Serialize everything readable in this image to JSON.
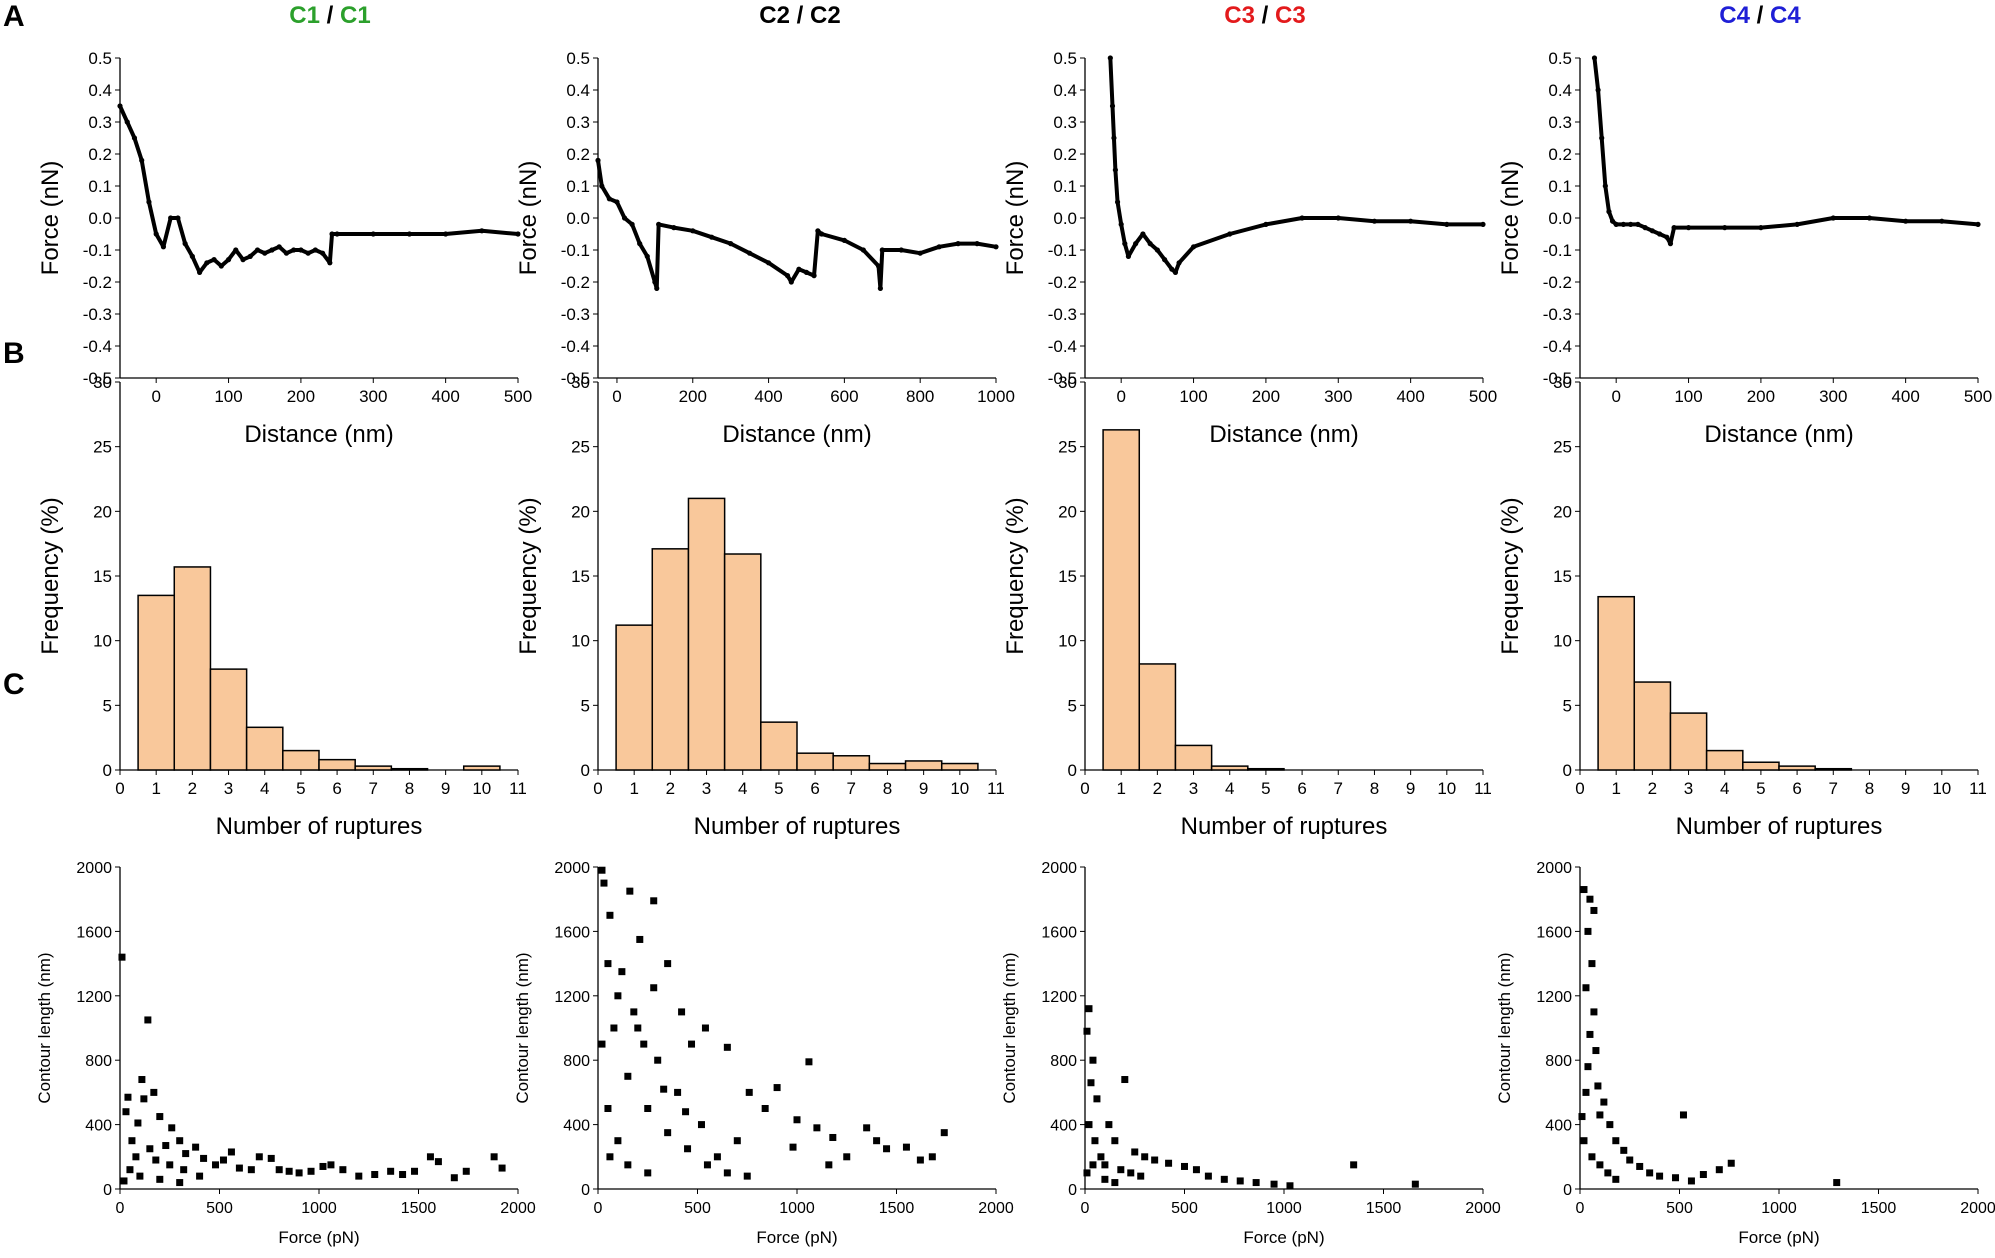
{
  "panel_labels": {
    "a": "A",
    "b": "B",
    "c": "C"
  },
  "column_titles": [
    {
      "left": "C1",
      "sep": "/",
      "right": "C1",
      "color": "#2ca02c"
    },
    {
      "left": "C2",
      "sep": "/",
      "right": "C2",
      "color": "#000000"
    },
    {
      "left": "C3",
      "sep": "/",
      "right": "C3",
      "color": "#e31a1c"
    },
    {
      "left": "C4",
      "sep": "/",
      "right": "C4",
      "color": "#1f1fd6"
    }
  ],
  "colors": {
    "bar_fill": "#f9c89b",
    "bar_stroke": "#000000",
    "marker": "#000000"
  },
  "chart_data": [
    {
      "id": "A1",
      "type": "line",
      "xlabel": "Distance (nm)",
      "ylabel": "Force (nN)",
      "xlim": [
        -50,
        500
      ],
      "ylim": [
        -0.5,
        0.5
      ],
      "xticks": [
        0,
        100,
        200,
        300,
        400,
        500
      ],
      "yticks": [
        -0.5,
        -0.4,
        -0.3,
        -0.2,
        -0.1,
        0.0,
        0.1,
        0.2,
        0.3,
        0.4,
        0.5
      ],
      "x": [
        -50,
        -40,
        -30,
        -20,
        -10,
        0,
        10,
        20,
        30,
        40,
        50,
        60,
        70,
        80,
        90,
        100,
        110,
        120,
        130,
        140,
        150,
        160,
        170,
        180,
        190,
        200,
        210,
        220,
        230,
        240,
        243,
        250,
        300,
        350,
        400,
        450,
        500
      ],
      "y": [
        0.35,
        0.3,
        0.25,
        0.18,
        0.05,
        -0.05,
        -0.09,
        0.0,
        0.0,
        -0.08,
        -0.12,
        -0.17,
        -0.14,
        -0.13,
        -0.15,
        -0.13,
        -0.1,
        -0.13,
        -0.12,
        -0.1,
        -0.11,
        -0.1,
        -0.09,
        -0.11,
        -0.1,
        -0.1,
        -0.11,
        -0.1,
        -0.11,
        -0.14,
        -0.05,
        -0.05,
        -0.05,
        -0.05,
        -0.05,
        -0.04,
        -0.05
      ]
    },
    {
      "id": "A2",
      "type": "line",
      "xlabel": "Distance (nm)",
      "ylabel": "Force (nN)",
      "xlim": [
        -50,
        1000
      ],
      "ylim": [
        -0.5,
        0.5
      ],
      "xticks": [
        0,
        200,
        400,
        600,
        800,
        1000
      ],
      "yticks": [
        -0.5,
        -0.4,
        -0.3,
        -0.2,
        -0.1,
        0.0,
        0.1,
        0.2,
        0.3,
        0.4,
        0.5
      ],
      "x": [
        -50,
        -40,
        -20,
        0,
        20,
        40,
        60,
        80,
        100,
        105,
        110,
        150,
        200,
        250,
        300,
        350,
        400,
        450,
        460,
        480,
        500,
        520,
        530,
        540,
        600,
        650,
        690,
        695,
        700,
        750,
        800,
        850,
        900,
        950,
        1000
      ],
      "y": [
        0.18,
        0.1,
        0.06,
        0.05,
        0.0,
        -0.02,
        -0.08,
        -0.12,
        -0.2,
        -0.22,
        -0.02,
        -0.03,
        -0.04,
        -0.06,
        -0.08,
        -0.11,
        -0.14,
        -0.18,
        -0.2,
        -0.16,
        -0.17,
        -0.18,
        -0.04,
        -0.05,
        -0.07,
        -0.1,
        -0.15,
        -0.22,
        -0.1,
        -0.1,
        -0.11,
        -0.09,
        -0.08,
        -0.08,
        -0.09
      ]
    },
    {
      "id": "A3",
      "type": "line",
      "xlabel": "Distance (nm)",
      "ylabel": "Force (nN)",
      "xlim": [
        -50,
        500
      ],
      "ylim": [
        -0.5,
        0.5
      ],
      "xticks": [
        0,
        100,
        200,
        300,
        400,
        500
      ],
      "yticks": [
        -0.5,
        -0.4,
        -0.3,
        -0.2,
        -0.1,
        0.0,
        0.1,
        0.2,
        0.3,
        0.4,
        0.5
      ],
      "x": [
        -15,
        -12,
        -10,
        -8,
        -5,
        0,
        5,
        10,
        20,
        30,
        40,
        50,
        60,
        70,
        75,
        80,
        100,
        150,
        200,
        250,
        300,
        350,
        400,
        450,
        500
      ],
      "y": [
        0.5,
        0.35,
        0.25,
        0.15,
        0.05,
        -0.02,
        -0.08,
        -0.12,
        -0.08,
        -0.05,
        -0.08,
        -0.1,
        -0.13,
        -0.16,
        -0.17,
        -0.14,
        -0.09,
        -0.05,
        -0.02,
        0.0,
        0.0,
        -0.01,
        -0.01,
        -0.02,
        -0.02
      ]
    },
    {
      "id": "A4",
      "type": "line",
      "xlabel": "Distance (nm)",
      "ylabel": "Force (nN)",
      "xlim": [
        -50,
        500
      ],
      "ylim": [
        -0.5,
        0.5
      ],
      "xticks": [
        0,
        100,
        200,
        300,
        400,
        500
      ],
      "yticks": [
        -0.5,
        -0.4,
        -0.3,
        -0.2,
        -0.1,
        0.0,
        0.1,
        0.2,
        0.3,
        0.4,
        0.5
      ],
      "x": [
        -30,
        -25,
        -20,
        -15,
        -10,
        -5,
        0,
        10,
        20,
        30,
        40,
        50,
        60,
        70,
        75,
        80,
        100,
        150,
        200,
        250,
        300,
        350,
        400,
        450,
        500
      ],
      "y": [
        0.5,
        0.4,
        0.25,
        0.1,
        0.02,
        -0.01,
        -0.02,
        -0.02,
        -0.02,
        -0.02,
        -0.03,
        -0.04,
        -0.05,
        -0.06,
        -0.08,
        -0.03,
        -0.03,
        -0.03,
        -0.03,
        -0.02,
        0.0,
        0.0,
        -0.01,
        -0.01,
        -0.02
      ]
    },
    {
      "id": "B1",
      "type": "bar",
      "xlabel": "Number of ruptures",
      "ylabel": "Frequency (%)",
      "xlim": [
        0,
        11
      ],
      "ylim": [
        0,
        30
      ],
      "xticks": [
        0,
        1,
        2,
        3,
        4,
        5,
        6,
        7,
        8,
        9,
        10,
        11
      ],
      "yticks": [
        0,
        5,
        10,
        15,
        20,
        25,
        30
      ],
      "categories": [
        1,
        2,
        3,
        4,
        5,
        6,
        7,
        8,
        9,
        10
      ],
      "values": [
        13.5,
        15.7,
        7.8,
        3.3,
        1.5,
        0.8,
        0.3,
        0.1,
        0.0,
        0.3
      ]
    },
    {
      "id": "B2",
      "type": "bar",
      "xlabel": "Number of ruptures",
      "ylabel": "Frequency (%)",
      "xlim": [
        0,
        11
      ],
      "ylim": [
        0,
        30
      ],
      "xticks": [
        0,
        1,
        2,
        3,
        4,
        5,
        6,
        7,
        8,
        9,
        10,
        11
      ],
      "yticks": [
        0,
        5,
        10,
        15,
        20,
        25,
        30
      ],
      "categories": [
        1,
        2,
        3,
        4,
        5,
        6,
        7,
        8,
        9,
        10
      ],
      "values": [
        11.2,
        17.1,
        21.0,
        16.7,
        3.7,
        1.3,
        1.1,
        0.5,
        0.7,
        0.5
      ]
    },
    {
      "id": "B3",
      "type": "bar",
      "xlabel": "Number of ruptures",
      "ylabel": "Frequency (%)",
      "xlim": [
        0,
        11
      ],
      "ylim": [
        0,
        30
      ],
      "xticks": [
        0,
        1,
        2,
        3,
        4,
        5,
        6,
        7,
        8,
        9,
        10,
        11
      ],
      "yticks": [
        0,
        5,
        10,
        15,
        20,
        25,
        30
      ],
      "categories": [
        1,
        2,
        3,
        4,
        5,
        6,
        7,
        8,
        9,
        10
      ],
      "values": [
        26.3,
        8.2,
        1.9,
        0.3,
        0.1,
        0,
        0,
        0,
        0,
        0
      ]
    },
    {
      "id": "B4",
      "type": "bar",
      "xlabel": "Number of ruptures",
      "ylabel": "Frequency (%)",
      "xlim": [
        0,
        11
      ],
      "ylim": [
        0,
        30
      ],
      "xticks": [
        0,
        1,
        2,
        3,
        4,
        5,
        6,
        7,
        8,
        9,
        10,
        11
      ],
      "yticks": [
        0,
        5,
        10,
        15,
        20,
        25,
        30
      ],
      "categories": [
        1,
        2,
        3,
        4,
        5,
        6,
        7,
        8,
        9,
        10
      ],
      "values": [
        13.4,
        6.8,
        4.4,
        1.5,
        0.6,
        0.3,
        0.1,
        0,
        0,
        0
      ]
    },
    {
      "id": "C1",
      "type": "scatter",
      "xlabel": "Force (pN)",
      "ylabel": "Contour length (nm)",
      "xlim": [
        0,
        2000
      ],
      "ylim": [
        0,
        2000
      ],
      "xticks": [
        0,
        500,
        1000,
        1500,
        2000
      ],
      "yticks": [
        0,
        400,
        800,
        1200,
        1600,
        2000
      ],
      "points": [
        [
          10,
          1440
        ],
        [
          140,
          1050
        ],
        [
          110,
          680
        ],
        [
          120,
          560
        ],
        [
          170,
          600
        ],
        [
          40,
          570
        ],
        [
          30,
          480
        ],
        [
          200,
          450
        ],
        [
          90,
          410
        ],
        [
          260,
          380
        ],
        [
          300,
          300
        ],
        [
          230,
          270
        ],
        [
          380,
          260
        ],
        [
          330,
          220
        ],
        [
          420,
          190
        ],
        [
          520,
          180
        ],
        [
          480,
          150
        ],
        [
          560,
          230
        ],
        [
          600,
          130
        ],
        [
          700,
          200
        ],
        [
          660,
          120
        ],
        [
          760,
          190
        ],
        [
          800,
          120
        ],
        [
          850,
          110
        ],
        [
          900,
          100
        ],
        [
          960,
          110
        ],
        [
          1020,
          140
        ],
        [
          1060,
          150
        ],
        [
          1120,
          120
        ],
        [
          1200,
          80
        ],
        [
          1280,
          90
        ],
        [
          1360,
          110
        ],
        [
          1420,
          90
        ],
        [
          1480,
          110
        ],
        [
          1560,
          200
        ],
        [
          1600,
          170
        ],
        [
          1680,
          70
        ],
        [
          1740,
          110
        ],
        [
          1880,
          200
        ],
        [
          1920,
          130
        ],
        [
          60,
          300
        ],
        [
          80,
          200
        ],
        [
          150,
          250
        ],
        [
          180,
          180
        ],
        [
          250,
          150
        ],
        [
          320,
          120
        ],
        [
          400,
          80
        ],
        [
          50,
          120
        ],
        [
          100,
          80
        ],
        [
          200,
          60
        ],
        [
          300,
          40
        ],
        [
          20,
          50
        ]
      ]
    },
    {
      "id": "C2",
      "type": "scatter",
      "xlabel": "Force (pN)",
      "ylabel": "Contour length (nm)",
      "xlim": [
        0,
        2000
      ],
      "ylim": [
        0,
        2000
      ],
      "xticks": [
        0,
        500,
        1000,
        1500,
        2000
      ],
      "yticks": [
        0,
        400,
        800,
        1200,
        1600,
        2000
      ],
      "points": [
        [
          20,
          1980
        ],
        [
          30,
          1900
        ],
        [
          160,
          1850
        ],
        [
          280,
          1790
        ],
        [
          60,
          1700
        ],
        [
          210,
          1550
        ],
        [
          350,
          1400
        ],
        [
          120,
          1350
        ],
        [
          280,
          1250
        ],
        [
          420,
          1100
        ],
        [
          540,
          1000
        ],
        [
          470,
          900
        ],
        [
          650,
          880
        ],
        [
          1060,
          790
        ],
        [
          900,
          630
        ],
        [
          760,
          600
        ],
        [
          840,
          500
        ],
        [
          1000,
          430
        ],
        [
          1100,
          380
        ],
        [
          1180,
          320
        ],
        [
          1350,
          380
        ],
        [
          1400,
          300
        ],
        [
          1450,
          250
        ],
        [
          1550,
          260
        ],
        [
          1620,
          180
        ],
        [
          1680,
          200
        ],
        [
          1740,
          350
        ],
        [
          1250,
          200
        ],
        [
          1160,
          150
        ],
        [
          980,
          260
        ],
        [
          700,
          300
        ],
        [
          600,
          200
        ],
        [
          520,
          400
        ],
        [
          400,
          600
        ],
        [
          300,
          800
        ],
        [
          200,
          1000
        ],
        [
          100,
          1200
        ],
        [
          50,
          1400
        ],
        [
          150,
          700
        ],
        [
          250,
          500
        ],
        [
          350,
          350
        ],
        [
          450,
          250
        ],
        [
          550,
          150
        ],
        [
          650,
          100
        ],
        [
          750,
          80
        ],
        [
          100,
          300
        ],
        [
          50,
          500
        ],
        [
          20,
          900
        ],
        [
          80,
          1000
        ],
        [
          180,
          1100
        ],
        [
          230,
          900
        ],
        [
          330,
          620
        ],
        [
          440,
          480
        ],
        [
          60,
          200
        ],
        [
          150,
          150
        ],
        [
          250,
          100
        ]
      ]
    },
    {
      "id": "C3",
      "type": "scatter",
      "xlabel": "Force (pN)",
      "ylabel": "Contour length (nm)",
      "xlim": [
        0,
        2000
      ],
      "ylim": [
        0,
        2000
      ],
      "xticks": [
        0,
        500,
        1000,
        1500,
        2000
      ],
      "yticks": [
        0,
        400,
        800,
        1200,
        1600,
        2000
      ],
      "points": [
        [
          20,
          1120
        ],
        [
          10,
          980
        ],
        [
          40,
          800
        ],
        [
          30,
          660
        ],
        [
          60,
          560
        ],
        [
          120,
          400
        ],
        [
          200,
          680
        ],
        [
          150,
          300
        ],
        [
          250,
          230
        ],
        [
          300,
          200
        ],
        [
          350,
          180
        ],
        [
          420,
          160
        ],
        [
          500,
          140
        ],
        [
          560,
          120
        ],
        [
          620,
          80
        ],
        [
          700,
          60
        ],
        [
          780,
          50
        ],
        [
          860,
          40
        ],
        [
          950,
          30
        ],
        [
          1030,
          20
        ],
        [
          1350,
          150
        ],
        [
          1660,
          30
        ],
        [
          80,
          200
        ],
        [
          100,
          150
        ],
        [
          180,
          120
        ],
        [
          230,
          100
        ],
        [
          280,
          80
        ],
        [
          20,
          400
        ],
        [
          50,
          300
        ],
        [
          40,
          150
        ],
        [
          100,
          60
        ],
        [
          150,
          40
        ],
        [
          10,
          100
        ]
      ]
    },
    {
      "id": "C4",
      "type": "scatter",
      "xlabel": "Force (pN)",
      "ylabel": "Contour length (nm)",
      "xlim": [
        0,
        2000
      ],
      "ylim": [
        0,
        2000
      ],
      "xticks": [
        0,
        500,
        1000,
        1500,
        2000
      ],
      "yticks": [
        0,
        400,
        800,
        1200,
        1600,
        2000
      ],
      "points": [
        [
          20,
          1860
        ],
        [
          50,
          1800
        ],
        [
          70,
          1730
        ],
        [
          40,
          1600
        ],
        [
          60,
          1400
        ],
        [
          30,
          1250
        ],
        [
          70,
          1100
        ],
        [
          50,
          960
        ],
        [
          80,
          860
        ],
        [
          40,
          760
        ],
        [
          90,
          640
        ],
        [
          120,
          540
        ],
        [
          100,
          460
        ],
        [
          150,
          400
        ],
        [
          180,
          300
        ],
        [
          220,
          240
        ],
        [
          250,
          180
        ],
        [
          300,
          140
        ],
        [
          350,
          100
        ],
        [
          400,
          80
        ],
        [
          480,
          70
        ],
        [
          520,
          460
        ],
        [
          560,
          50
        ],
        [
          620,
          90
        ],
        [
          700,
          120
        ],
        [
          760,
          160
        ],
        [
          1290,
          40
        ],
        [
          20,
          300
        ],
        [
          60,
          200
        ],
        [
          100,
          150
        ],
        [
          140,
          100
        ],
        [
          180,
          60
        ],
        [
          30,
          600
        ],
        [
          10,
          450
        ]
      ]
    }
  ]
}
